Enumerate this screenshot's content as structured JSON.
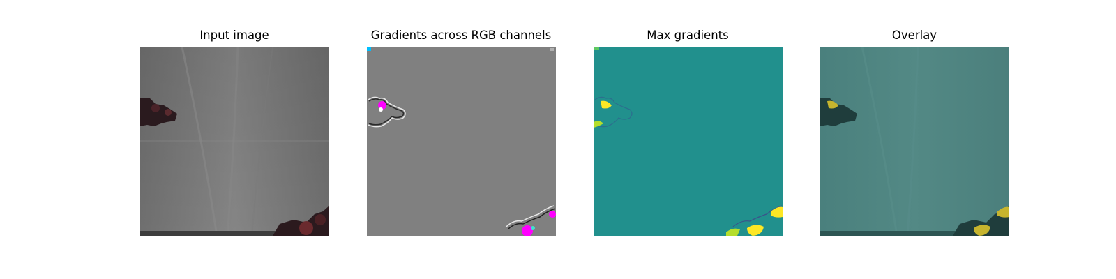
{
  "figure": {
    "panels": [
      {
        "title": "Input image",
        "content": "camera-frame"
      },
      {
        "title": "Gradients across RGB channels",
        "content": "rgb-gradient-map"
      },
      {
        "title": "Max gradients",
        "content": "max-gradient-heatmap"
      },
      {
        "title": "Overlay",
        "content": "gradient-overlay"
      }
    ]
  },
  "colors": {
    "background": "#ffffff",
    "input_gray": "#7f7f7f",
    "gradient_neutral_gray": "#808080",
    "gradient_magenta": "#ff00ff",
    "heatmap_base": "#21908d",
    "heatmap_high": "#fde725",
    "overlay_base": "#4f8582",
    "overlay_high": "#c6b42e",
    "object_dark_red": "#3a1a1f"
  }
}
